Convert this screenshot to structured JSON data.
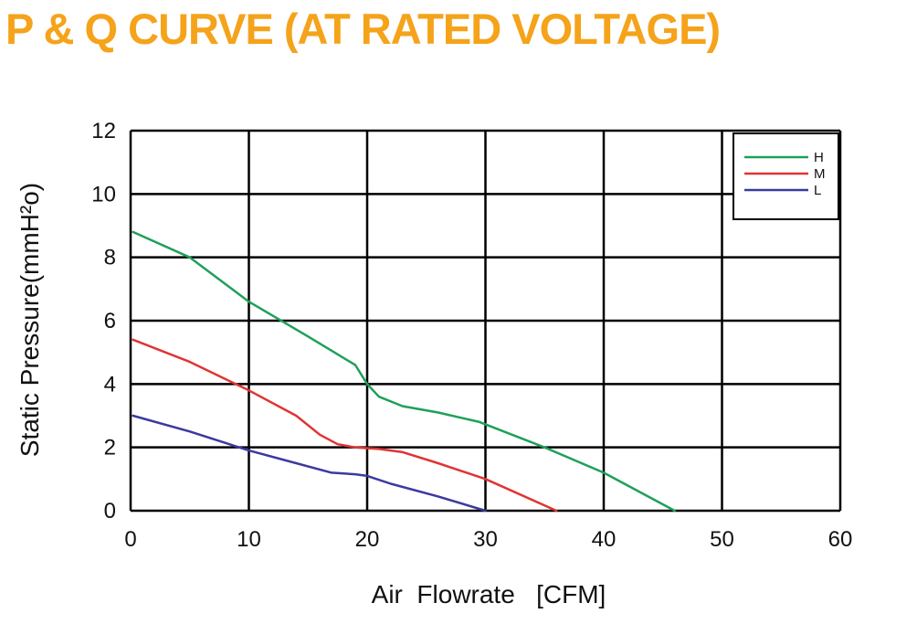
{
  "chart_data": {
    "type": "line",
    "title": "P & Q CURVE (AT RATED VOLTAGE)",
    "xlabel": "Air  Flowrate   [CFM]",
    "ylabel": "Static Pressure(mmH²o)",
    "xlim": [
      0,
      60
    ],
    "ylim": [
      0,
      12
    ],
    "xticks": [
      "0",
      "10",
      "20",
      "30",
      "40",
      "50",
      "60"
    ],
    "yticks": [
      "0",
      "2",
      "4",
      "6",
      "8",
      "10",
      "12"
    ],
    "grid": true,
    "legend_position": "top-right",
    "series": [
      {
        "name": "H",
        "color": "#1fa05a",
        "points": [
          [
            0.2,
            8.8
          ],
          [
            5,
            8.0
          ],
          [
            10,
            6.6
          ],
          [
            15,
            5.5
          ],
          [
            19,
            4.6
          ],
          [
            20,
            4.0
          ],
          [
            21,
            3.6
          ],
          [
            23,
            3.3
          ],
          [
            26,
            3.1
          ],
          [
            29.5,
            2.8
          ],
          [
            35,
            2.0
          ],
          [
            40,
            1.2
          ],
          [
            46,
            0
          ]
        ]
      },
      {
        "name": "M",
        "color": "#e03434",
        "points": [
          [
            0.2,
            5.4
          ],
          [
            5,
            4.7
          ],
          [
            10,
            3.8
          ],
          [
            14,
            3.0
          ],
          [
            16,
            2.4
          ],
          [
            17.5,
            2.1
          ],
          [
            19,
            2.0
          ],
          [
            21,
            1.95
          ],
          [
            23,
            1.85
          ],
          [
            26,
            1.5
          ],
          [
            30,
            1.0
          ],
          [
            36,
            0
          ]
        ]
      },
      {
        "name": "L",
        "color": "#3a3aa0",
        "points": [
          [
            0.2,
            3.0
          ],
          [
            5,
            2.5
          ],
          [
            10,
            1.9
          ],
          [
            14,
            1.5
          ],
          [
            17,
            1.2
          ],
          [
            19,
            1.15
          ],
          [
            20,
            1.1
          ],
          [
            22,
            0.85
          ],
          [
            26,
            0.45
          ],
          [
            30,
            0
          ]
        ]
      }
    ]
  }
}
